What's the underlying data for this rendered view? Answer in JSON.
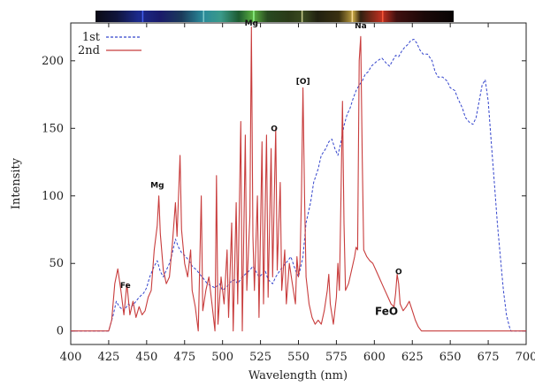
{
  "chart_data": {
    "type": "line",
    "xlabel": "Wavelength (nm)",
    "ylabel": "Intensity",
    "xlim": [
      400,
      700
    ],
    "ylim": [
      -10,
      228
    ],
    "xticks": [
      400,
      425,
      450,
      475,
      500,
      525,
      550,
      575,
      600,
      625,
      650,
      675,
      700
    ],
    "yticks": [
      0,
      50,
      100,
      150,
      200
    ],
    "grid": false,
    "legend_position": "top-left",
    "series": [
      {
        "name": "1st",
        "color": "#3344cc",
        "style": "dashed",
        "points": [
          [
            400,
            0
          ],
          [
            425,
            0
          ],
          [
            428,
            12
          ],
          [
            430,
            22
          ],
          [
            432,
            18
          ],
          [
            435,
            15
          ],
          [
            438,
            20
          ],
          [
            440,
            18
          ],
          [
            443,
            22
          ],
          [
            445,
            25
          ],
          [
            448,
            28
          ],
          [
            450,
            32
          ],
          [
            452,
            40
          ],
          [
            455,
            48
          ],
          [
            457,
            52
          ],
          [
            459,
            44
          ],
          [
            461,
            40
          ],
          [
            463,
            45
          ],
          [
            465,
            50
          ],
          [
            467,
            58
          ],
          [
            469,
            68
          ],
          [
            471,
            62
          ],
          [
            473,
            58
          ],
          [
            475,
            56
          ],
          [
            478,
            52
          ],
          [
            480,
            48
          ],
          [
            483,
            45
          ],
          [
            485,
            42
          ],
          [
            488,
            38
          ],
          [
            490,
            35
          ],
          [
            493,
            33
          ],
          [
            495,
            32
          ],
          [
            498,
            35
          ],
          [
            500,
            30
          ],
          [
            503,
            33
          ],
          [
            505,
            36
          ],
          [
            508,
            38
          ],
          [
            510,
            35
          ],
          [
            513,
            40
          ],
          [
            515,
            42
          ],
          [
            518,
            45
          ],
          [
            520,
            48
          ],
          [
            522,
            44
          ],
          [
            524,
            40
          ],
          [
            526,
            42
          ],
          [
            528,
            45
          ],
          [
            530,
            38
          ],
          [
            533,
            35
          ],
          [
            535,
            40
          ],
          [
            538,
            45
          ],
          [
            540,
            48
          ],
          [
            543,
            52
          ],
          [
            545,
            55
          ],
          [
            548,
            45
          ],
          [
            550,
            40
          ],
          [
            553,
            55
          ],
          [
            555,
            80
          ],
          [
            558,
            95
          ],
          [
            560,
            110
          ],
          [
            563,
            120
          ],
          [
            565,
            130
          ],
          [
            568,
            135
          ],
          [
            570,
            140
          ],
          [
            572,
            142
          ],
          [
            574,
            135
          ],
          [
            576,
            130
          ],
          [
            578,
            140
          ],
          [
            580,
            152
          ],
          [
            582,
            160
          ],
          [
            584,
            165
          ],
          [
            586,
            172
          ],
          [
            588,
            178
          ],
          [
            590,
            182
          ],
          [
            592,
            185
          ],
          [
            594,
            190
          ],
          [
            596,
            192
          ],
          [
            598,
            196
          ],
          [
            600,
            198
          ],
          [
            602,
            200
          ],
          [
            605,
            202
          ],
          [
            608,
            198
          ],
          [
            610,
            196
          ],
          [
            612,
            200
          ],
          [
            614,
            204
          ],
          [
            616,
            203
          ],
          [
            618,
            207
          ],
          [
            620,
            210
          ],
          [
            622,
            212
          ],
          [
            624,
            215
          ],
          [
            626,
            216
          ],
          [
            628,
            213
          ],
          [
            630,
            208
          ],
          [
            632,
            205
          ],
          [
            635,
            205
          ],
          [
            638,
            200
          ],
          [
            640,
            192
          ],
          [
            642,
            188
          ],
          [
            645,
            188
          ],
          [
            648,
            185
          ],
          [
            650,
            180
          ],
          [
            653,
            178
          ],
          [
            655,
            172
          ],
          [
            658,
            165
          ],
          [
            660,
            158
          ],
          [
            663,
            154
          ],
          [
            665,
            153
          ],
          [
            667,
            158
          ],
          [
            669,
            170
          ],
          [
            671,
            182
          ],
          [
            673,
            186
          ],
          [
            675,
            170
          ],
          [
            677,
            140
          ],
          [
            679,
            110
          ],
          [
            681,
            80
          ],
          [
            683,
            55
          ],
          [
            685,
            30
          ],
          [
            687,
            12
          ],
          [
            689,
            3
          ],
          [
            690,
            0
          ],
          [
            700,
            0
          ]
        ]
      },
      {
        "name": "2nd",
        "color": "#c83c3c",
        "style": "solid",
        "points": [
          [
            400,
            0
          ],
          [
            425,
            0
          ],
          [
            427,
            8
          ],
          [
            429,
            35
          ],
          [
            431,
            46
          ],
          [
            433,
            30
          ],
          [
            435,
            12
          ],
          [
            437,
            35
          ],
          [
            439,
            12
          ],
          [
            441,
            22
          ],
          [
            443,
            10
          ],
          [
            445,
            18
          ],
          [
            447,
            12
          ],
          [
            449,
            15
          ],
          [
            451,
            25
          ],
          [
            453,
            30
          ],
          [
            455,
            60
          ],
          [
            457,
            78
          ],
          [
            458,
            100
          ],
          [
            459,
            72
          ],
          [
            461,
            45
          ],
          [
            463,
            35
          ],
          [
            465,
            40
          ],
          [
            467,
            65
          ],
          [
            469,
            95
          ],
          [
            470,
            70
          ],
          [
            472,
            130
          ],
          [
            473,
            75
          ],
          [
            475,
            50
          ],
          [
            477,
            40
          ],
          [
            479,
            60
          ],
          [
            480,
            30
          ],
          [
            482,
            18
          ],
          [
            484,
            0
          ],
          [
            486,
            100
          ],
          [
            487,
            15
          ],
          [
            489,
            30
          ],
          [
            491,
            40
          ],
          [
            493,
            20
          ],
          [
            495,
            0
          ],
          [
            496,
            115
          ],
          [
            497,
            5
          ],
          [
            499,
            40
          ],
          [
            501,
            20
          ],
          [
            503,
            60
          ],
          [
            504,
            10
          ],
          [
            506,
            80
          ],
          [
            507,
            0
          ],
          [
            509,
            95
          ],
          [
            510,
            20
          ],
          [
            512,
            155
          ],
          [
            513,
            0
          ],
          [
            515,
            145
          ],
          [
            516,
            30
          ],
          [
            518,
            85
          ],
          [
            519,
            225
          ],
          [
            520,
            70
          ],
          [
            521,
            30
          ],
          [
            523,
            100
          ],
          [
            524,
            10
          ],
          [
            526,
            140
          ],
          [
            527,
            20
          ],
          [
            529,
            145
          ],
          [
            530,
            25
          ],
          [
            532,
            135
          ],
          [
            533,
            40
          ],
          [
            535,
            150
          ],
          [
            536,
            45
          ],
          [
            538,
            110
          ],
          [
            539,
            30
          ],
          [
            541,
            60
          ],
          [
            542,
            20
          ],
          [
            544,
            50
          ],
          [
            546,
            35
          ],
          [
            548,
            20
          ],
          [
            549,
            55
          ],
          [
            550,
            40
          ],
          [
            551,
            50
          ],
          [
            552,
            100
          ],
          [
            553,
            180
          ],
          [
            554,
            100
          ],
          [
            555,
            40
          ],
          [
            557,
            20
          ],
          [
            559,
            10
          ],
          [
            561,
            5
          ],
          [
            563,
            8
          ],
          [
            565,
            5
          ],
          [
            567,
            15
          ],
          [
            569,
            30
          ],
          [
            570,
            42
          ],
          [
            571,
            20
          ],
          [
            573,
            5
          ],
          [
            575,
            25
          ],
          [
            576,
            50
          ],
          [
            577,
            30
          ],
          [
            578,
            100
          ],
          [
            579,
            170
          ],
          [
            580,
            80
          ],
          [
            581,
            30
          ],
          [
            583,
            35
          ],
          [
            585,
            45
          ],
          [
            587,
            55
          ],
          [
            588,
            62
          ],
          [
            589,
            60
          ],
          [
            590,
            200
          ],
          [
            591,
            218
          ],
          [
            592,
            130
          ],
          [
            593,
            60
          ],
          [
            595,
            55
          ],
          [
            597,
            52
          ],
          [
            599,
            50
          ],
          [
            601,
            45
          ],
          [
            603,
            40
          ],
          [
            605,
            35
          ],
          [
            607,
            30
          ],
          [
            609,
            25
          ],
          [
            611,
            20
          ],
          [
            613,
            18
          ],
          [
            614,
            28
          ],
          [
            615,
            42
          ],
          [
            616,
            35
          ],
          [
            617,
            20
          ],
          [
            619,
            15
          ],
          [
            621,
            18
          ],
          [
            623,
            22
          ],
          [
            625,
            15
          ],
          [
            627,
            8
          ],
          [
            629,
            3
          ],
          [
            631,
            0
          ],
          [
            700,
            0
          ]
        ]
      }
    ],
    "annotations": [
      {
        "text": "Fe",
        "x": 436,
        "y": 30
      },
      {
        "text": "Mg",
        "x": 457,
        "y": 104
      },
      {
        "text": "Mg",
        "x": 519,
        "y": 224
      },
      {
        "text": "O",
        "x": 534,
        "y": 146
      },
      {
        "text": "[O]",
        "x": 553,
        "y": 181
      },
      {
        "text": "Na",
        "x": 591,
        "y": 222
      },
      {
        "text": "O",
        "x": 616,
        "y": 40
      },
      {
        "text": "FeO",
        "x": 608,
        "y": 10,
        "size": "large"
      }
    ],
    "spectrum_bar": {
      "stops": [
        {
          "offset": 0.0,
          "color": "#0a0a14"
        },
        {
          "offset": 0.06,
          "color": "#10143c"
        },
        {
          "offset": 0.12,
          "color": "#1c2a8c"
        },
        {
          "offset": 0.18,
          "color": "#1a1a6a"
        },
        {
          "offset": 0.24,
          "color": "#1a3a5a"
        },
        {
          "offset": 0.3,
          "color": "#2a8a9a"
        },
        {
          "offset": 0.35,
          "color": "#3a9a8a"
        },
        {
          "offset": 0.4,
          "color": "#1c5a30"
        },
        {
          "offset": 0.44,
          "color": "#5ab040"
        },
        {
          "offset": 0.48,
          "color": "#284a20"
        },
        {
          "offset": 0.54,
          "color": "#2a3a18"
        },
        {
          "offset": 0.58,
          "color": "#3a4a20"
        },
        {
          "offset": 0.62,
          "color": "#202010"
        },
        {
          "offset": 0.68,
          "color": "#3a3010"
        },
        {
          "offset": 0.72,
          "color": "#c0a040"
        },
        {
          "offset": 0.74,
          "color": "#302010"
        },
        {
          "offset": 0.8,
          "color": "#c03020"
        },
        {
          "offset": 0.84,
          "color": "#401010"
        },
        {
          "offset": 0.92,
          "color": "#1a0808"
        },
        {
          "offset": 1.0,
          "color": "#080404"
        }
      ]
    }
  }
}
